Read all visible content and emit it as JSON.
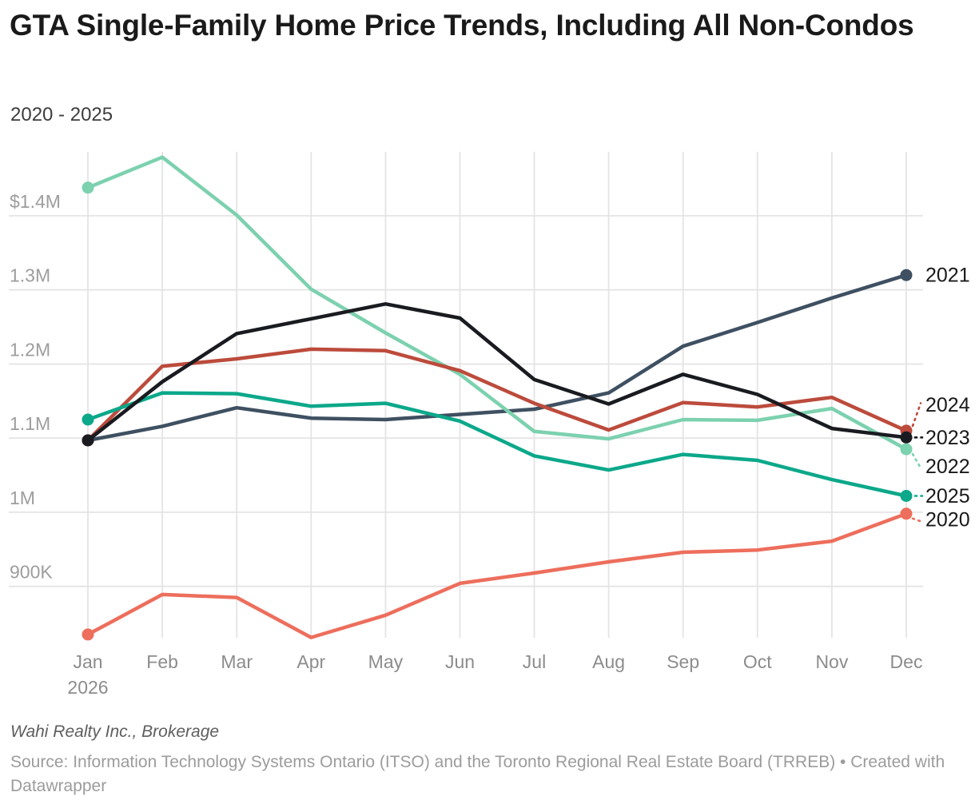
{
  "header": {
    "title": "GTA Single-Family Home Price Trends, Including All Non-Condos",
    "subtitle": "2020 - 2025"
  },
  "chart_data": {
    "type": "line",
    "title": "GTA Single-Family Home Price Trends, Including All Non-Condos",
    "subtitle": "2020 - 2025",
    "unit": "CAD thousands",
    "grid": true,
    "legend_position": "right-edge-direct-labels",
    "x_axis": {
      "months": [
        "Jan",
        "Feb",
        "Mar",
        "Apr",
        "May",
        "Jun",
        "Jul",
        "Aug",
        "Sep",
        "Oct",
        "Nov",
        "Dec"
      ],
      "year_label": "2026"
    },
    "y_axis": {
      "ticks": [
        {
          "label": "$1.4M",
          "value": 1400
        },
        {
          "label": "1.3M",
          "value": 1300
        },
        {
          "label": "1.2M",
          "value": 1200
        },
        {
          "label": "1.1M",
          "value": 1100
        },
        {
          "label": "1M",
          "value": 1000
        },
        {
          "label": "900K",
          "value": 900
        }
      ],
      "range_thousands": [
        820,
        1500
      ]
    },
    "series": [
      {
        "name": "2020",
        "color": "#ED6E5C",
        "leader": "auto",
        "label_value": 990,
        "values": [
          835,
          889,
          885,
          831,
          861,
          904,
          918,
          933,
          946,
          949,
          961,
          998
        ]
      },
      {
        "name": "2021",
        "color": "#3E5061",
        "leader": "none",
        "label_value": 1320,
        "values": [
          1097,
          1116,
          1141,
          1127,
          1125,
          1132,
          1139,
          1161,
          1224,
          1256,
          1289,
          1320
        ]
      },
      {
        "name": "2022",
        "color": "#7CD1AF",
        "leader": "auto",
        "label_value": 1062,
        "values": [
          1438,
          1479,
          1401,
          1301,
          1242,
          1186,
          1109,
          1099,
          1125,
          1124,
          1140,
          1085
        ]
      },
      {
        "name": "2024",
        "color": "#BC4B3C",
        "leader": "auto",
        "label_value": 1145,
        "values": [
          1097,
          1197,
          1207,
          1220,
          1218,
          1191,
          1147,
          1111,
          1148,
          1142,
          1155,
          1110
        ]
      },
      {
        "name": "2025",
        "color": "#0CA88A",
        "leader": "auto",
        "label_value": 1022,
        "values": [
          1125,
          1161,
          1160,
          1143,
          1147,
          1123,
          1076,
          1057,
          1078,
          1070,
          1044,
          1022
        ]
      },
      {
        "name": "2023",
        "color": "#1A1B20",
        "leader": "auto",
        "label_value": 1101,
        "values": [
          1097,
          1176,
          1241,
          1261,
          1281,
          1262,
          1179,
          1146,
          1186,
          1159,
          1113,
          1101
        ]
      }
    ],
    "style": {
      "gridline_color": "#e4e4e4",
      "y_label_color": "#9d9d9d",
      "x_label_color": "#8c8c8c",
      "year_label_color": "#191919"
    }
  },
  "footer": {
    "byline": "Wahi Realty Inc., Brokerage",
    "source": "Source: Information Technology Systems Ontario (ITSO) and the Toronto Regional Real Estate Board (TRREB) • Created with Datawrapper"
  }
}
